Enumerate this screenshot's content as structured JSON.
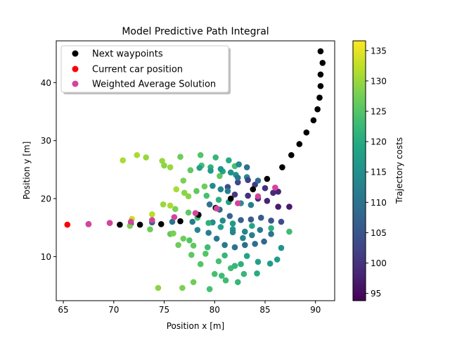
{
  "chart_data": {
    "type": "scatter",
    "title": "Model Predictive Path Integral",
    "xlabel": "Position x [m]",
    "ylabel": "Position y [m]",
    "xlim": [
      64.3,
      91.9
    ],
    "ylim": [
      2.4,
      47.2
    ],
    "x_ticks": [
      65,
      70,
      75,
      80,
      85,
      90
    ],
    "y_ticks": [
      10,
      20,
      30,
      40
    ],
    "grid": false,
    "legend": {
      "placement": "top-left",
      "entries": [
        {
          "label": "Next waypoints",
          "color": "#000000"
        },
        {
          "label": "Current car position",
          "color": "#ff0000"
        },
        {
          "label": "Weighted Average Solution",
          "color": "#d4449c"
        }
      ]
    },
    "colorbar": {
      "label": "Trajectory costs",
      "range": [
        93.8,
        136.6
      ],
      "ticks": [
        95,
        100,
        105,
        110,
        115,
        120,
        125,
        130,
        135
      ],
      "colormap": "viridis"
    },
    "series": [
      {
        "name": "Next waypoints",
        "color": "#000000",
        "points": [
          [
            70.6,
            15.5
          ],
          [
            72.6,
            15.5
          ],
          [
            74.7,
            15.6
          ],
          [
            76.6,
            16.1
          ],
          [
            78.4,
            17.2
          ],
          [
            80.1,
            18.4
          ],
          [
            81.6,
            20.0
          ],
          [
            83.8,
            21.6
          ],
          [
            85.2,
            23.4
          ],
          [
            86.7,
            25.4
          ],
          [
            87.6,
            27.5
          ],
          [
            88.4,
            29.4
          ],
          [
            89.1,
            31.4
          ],
          [
            89.8,
            33.5
          ],
          [
            90.2,
            35.4
          ],
          [
            90.4,
            37.4
          ],
          [
            90.5,
            39.4
          ],
          [
            90.5,
            41.4
          ],
          [
            90.7,
            43.4
          ],
          [
            90.5,
            45.4
          ]
        ]
      },
      {
        "name": "Current car position",
        "color": "#ff0000",
        "points": [
          [
            65.4,
            15.5
          ]
        ]
      },
      {
        "name": "Weighted Average Solution",
        "color": "#d4449c",
        "points": [
          [
            67.5,
            15.6
          ],
          [
            69.6,
            15.8
          ],
          [
            71.7,
            16.0
          ],
          [
            73.8,
            16.3
          ],
          [
            76.0,
            16.8
          ],
          [
            78.1,
            17.5
          ],
          [
            80.2,
            18.3
          ],
          [
            82.3,
            19.2
          ],
          [
            84.3,
            20.4
          ],
          [
            86.0,
            21.9
          ]
        ]
      },
      {
        "name": "Trajectories",
        "colored_by": "Trajectory costs",
        "points": [
          [
            67.5,
            15.6,
            101
          ],
          [
            69.6,
            15.8,
            103
          ],
          [
            71.7,
            15.7,
            106
          ],
          [
            73.8,
            15.9,
            108
          ],
          [
            75.8,
            16.0,
            110
          ],
          [
            77.8,
            16.0,
            112
          ],
          [
            79.8,
            15.9,
            114
          ],
          [
            81.8,
            15.7,
            117
          ],
          [
            83.7,
            15.3,
            119
          ],
          [
            85.6,
            14.9,
            121
          ],
          [
            87.4,
            14.3,
            123
          ],
          [
            71.8,
            16.5,
            133
          ],
          [
            73.8,
            17.3,
            132
          ],
          [
            75.6,
            18.8,
            131
          ],
          [
            77.4,
            20.4,
            129
          ],
          [
            79.0,
            22.1,
            127
          ],
          [
            80.5,
            23.9,
            126
          ],
          [
            82.0,
            25.6,
            124
          ],
          [
            71.6,
            15.3,
            128
          ],
          [
            73.6,
            14.7,
            127
          ],
          [
            75.6,
            13.9,
            126
          ],
          [
            77.5,
            12.8,
            125
          ],
          [
            79.3,
            11.6,
            123
          ],
          [
            81.0,
            10.2,
            122
          ],
          [
            82.6,
            8.7,
            121
          ],
          [
            84.2,
            7.1,
            120
          ],
          [
            70.9,
            26.6,
            131
          ],
          [
            72.3,
            27.5,
            131
          ],
          [
            73.2,
            27.1,
            130
          ],
          [
            74.8,
            26.5,
            130
          ],
          [
            75.0,
            25.7,
            129
          ],
          [
            76.6,
            27.2,
            127
          ],
          [
            78.6,
            27.5,
            125
          ],
          [
            80.1,
            27.1,
            122
          ],
          [
            81.4,
            26.6,
            120
          ],
          [
            75.6,
            25.4,
            130
          ],
          [
            76.9,
            23.1,
            128
          ],
          [
            77.6,
            24.9,
            126
          ],
          [
            78.7,
            25.7,
            124
          ],
          [
            79.6,
            25.4,
            121
          ],
          [
            80.8,
            24.7,
            119
          ],
          [
            82.1,
            24.1,
            116
          ],
          [
            83.2,
            23.7,
            114
          ],
          [
            76.2,
            21.6,
            131
          ],
          [
            77.0,
            21.0,
            129
          ],
          [
            78.2,
            21.3,
            126
          ],
          [
            79.2,
            20.5,
            124
          ],
          [
            80.4,
            19.8,
            121
          ],
          [
            81.4,
            19.4,
            118
          ],
          [
            82.6,
            19.2,
            115
          ],
          [
            83.6,
            18.9,
            112
          ],
          [
            74.9,
            19.0,
            130
          ],
          [
            76.1,
            18.2,
            128
          ],
          [
            77.4,
            17.6,
            126
          ],
          [
            78.3,
            16.7,
            123
          ],
          [
            79.4,
            15.8,
            121
          ],
          [
            80.6,
            15.1,
            118
          ],
          [
            81.8,
            14.7,
            116
          ],
          [
            83.0,
            14.3,
            113
          ],
          [
            75.9,
            14.0,
            128
          ],
          [
            76.9,
            13.1,
            127
          ],
          [
            77.9,
            11.9,
            126
          ],
          [
            79.1,
            10.5,
            125
          ],
          [
            80.4,
            9.2,
            124
          ],
          [
            81.6,
            8.0,
            123
          ],
          [
            82.9,
            7.0,
            122
          ],
          [
            76.4,
            12.0,
            127
          ],
          [
            77.7,
            10.3,
            126
          ],
          [
            78.6,
            8.7,
            125
          ],
          [
            80.0,
            7.0,
            124
          ],
          [
            81.1,
            5.9,
            123
          ],
          [
            82.3,
            5.6,
            122
          ],
          [
            74.4,
            4.6,
            129
          ],
          [
            76.8,
            4.6,
            128
          ],
          [
            77.9,
            5.6,
            127
          ],
          [
            79.5,
            4.4,
            124
          ],
          [
            80.7,
            6.7,
            123
          ],
          [
            82.0,
            8.4,
            122
          ],
          [
            78.3,
            14.6,
            113
          ],
          [
            79.4,
            14.1,
            112
          ],
          [
            80.2,
            13.1,
            111
          ],
          [
            81.0,
            12.0,
            111
          ],
          [
            82.0,
            11.6,
            110
          ],
          [
            83.0,
            12.0,
            109
          ],
          [
            84.0,
            12.2,
            109
          ],
          [
            84.9,
            12.6,
            108
          ],
          [
            79.5,
            19.0,
            110
          ],
          [
            80.5,
            18.1,
            109
          ],
          [
            81.5,
            17.0,
            108
          ],
          [
            82.6,
            16.3,
            107
          ],
          [
            83.6,
            16.4,
            106
          ],
          [
            84.6,
            16.7,
            106
          ],
          [
            85.6,
            16.2,
            105
          ],
          [
            86.6,
            16.0,
            104
          ],
          [
            81.3,
            22.0,
            104
          ],
          [
            82.3,
            22.8,
            103
          ],
          [
            83.3,
            23.2,
            102
          ],
          [
            84.0,
            22.4,
            101
          ],
          [
            85.0,
            21.8,
            100
          ],
          [
            85.8,
            21.0,
            99
          ],
          [
            86.3,
            21.2,
            98
          ],
          [
            82.0,
            20.7,
            101
          ],
          [
            83.3,
            20.5,
            100
          ],
          [
            84.3,
            20.0,
            99
          ],
          [
            85.2,
            19.6,
            98
          ],
          [
            86.3,
            18.6,
            97
          ],
          [
            87.4,
            18.6,
            97
          ],
          [
            79.8,
            22.2,
            114
          ],
          [
            80.6,
            21.6,
            113
          ],
          [
            81.3,
            21.3,
            112
          ],
          [
            82.3,
            23.6,
            111
          ],
          [
            83.2,
            25.4,
            110
          ],
          [
            84.3,
            23.1,
            109
          ],
          [
            78.5,
            25.3,
            118
          ],
          [
            79.6,
            24.8,
            117
          ],
          [
            80.6,
            25.1,
            116
          ],
          [
            81.6,
            24.5,
            115
          ],
          [
            82.4,
            25.9,
            114
          ],
          [
            80.8,
            16.2,
            114
          ],
          [
            81.8,
            14.2,
            113
          ],
          [
            82.8,
            13.2,
            113
          ],
          [
            83.7,
            13.7,
            112
          ],
          [
            84.5,
            14.6,
            111
          ],
          [
            85.6,
            13.9,
            110
          ],
          [
            83.2,
            10.1,
            119
          ],
          [
            84.3,
            9.1,
            118
          ],
          [
            85.5,
            8.8,
            117
          ],
          [
            86.2,
            9.5,
            117
          ],
          [
            86.6,
            11.5,
            116
          ]
        ]
      }
    ]
  }
}
